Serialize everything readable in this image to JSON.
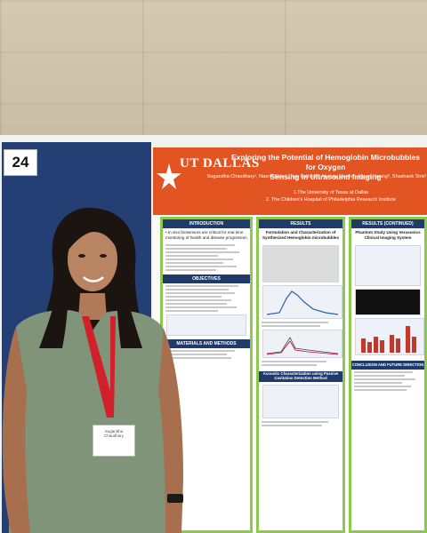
{
  "booth_number": "24",
  "poster": {
    "title_line1": "Exploring the Potential of Hemoglobin Microbubbles for Oxygen",
    "title_line2": "Sensing in Ultrasound Imaging",
    "logo": "UT DALLAS",
    "authors": "Sugandha Chaudhary¹, Nasrin Akter¹, Teja Pathour¹, Akshay Menon¹, Misun Hwang², Shashank Sirsi¹",
    "affiliation_1": "1.The University of Texas at Dallas",
    "affiliation_2": "2. The Children's Hospital of Philadelphia Research Institute",
    "columns": [
      {
        "heading": "INTRODUCTION",
        "secondary_heading": "OBJECTIVES",
        "tertiary_heading": "MATERIALS AND METHODS"
      },
      {
        "heading": "RESULTS",
        "subheading": "Formulation and Characterization of Synthesized Hemoglobin microbubbles",
        "secondary_heading": "Acoustic Characterization using Passive Cavitation Detection Method"
      },
      {
        "heading": "RESULTS (CONTINUED)",
        "subheading": "Phantom Study Using Verasonics Clinical Imaging System",
        "secondary_heading": "CONCLUSION AND FUTURE DIRECTION"
      }
    ],
    "intro_text": "• In vivo biosensors are critical for real time monitoring of health and disease progression",
    "badge_name": "Sugandha Chaudhary"
  },
  "colors": {
    "banner": "#e25522",
    "column_border": "#8fc750",
    "column_heading": "#1f3a6b",
    "blue_panel": "#243f73",
    "dress": "#7f9478"
  }
}
